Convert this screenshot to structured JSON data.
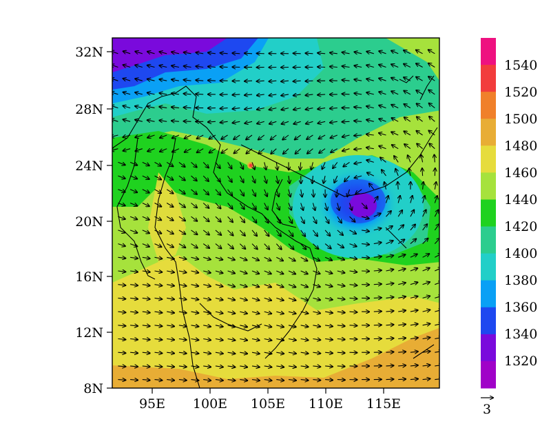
{
  "map": {
    "lat_labels": [
      "32N",
      "28N",
      "24N",
      "20N",
      "16N",
      "12N",
      "8N"
    ],
    "lon_labels": [
      "95E",
      "100E",
      "105E",
      "110E",
      "115E"
    ],
    "extent": {
      "lon_min": 91.3,
      "lon_max": 119.5,
      "lat_min": 8,
      "lat_max": 32.5
    },
    "low_center": {
      "lon": 113.2,
      "lat": 21.3
    },
    "land_color": "#000000",
    "arrow_color": "#000000"
  },
  "colorbar": {
    "labels": [
      "1540",
      "1520",
      "1500",
      "1480",
      "1460",
      "1440",
      "1420",
      "1400",
      "1380",
      "1360",
      "1340",
      "1320"
    ],
    "colors": [
      "#ee1180",
      "#f23c3c",
      "#f0802a",
      "#e8ad35",
      "#e6dc3c",
      "#a6e23c",
      "#1fd21f",
      "#2ccd8e",
      "#22cfc8",
      "#0aa0f5",
      "#1e48f0",
      "#7a0adc",
      "#a002c8"
    ]
  },
  "vector_legend": {
    "label": "3"
  }
}
